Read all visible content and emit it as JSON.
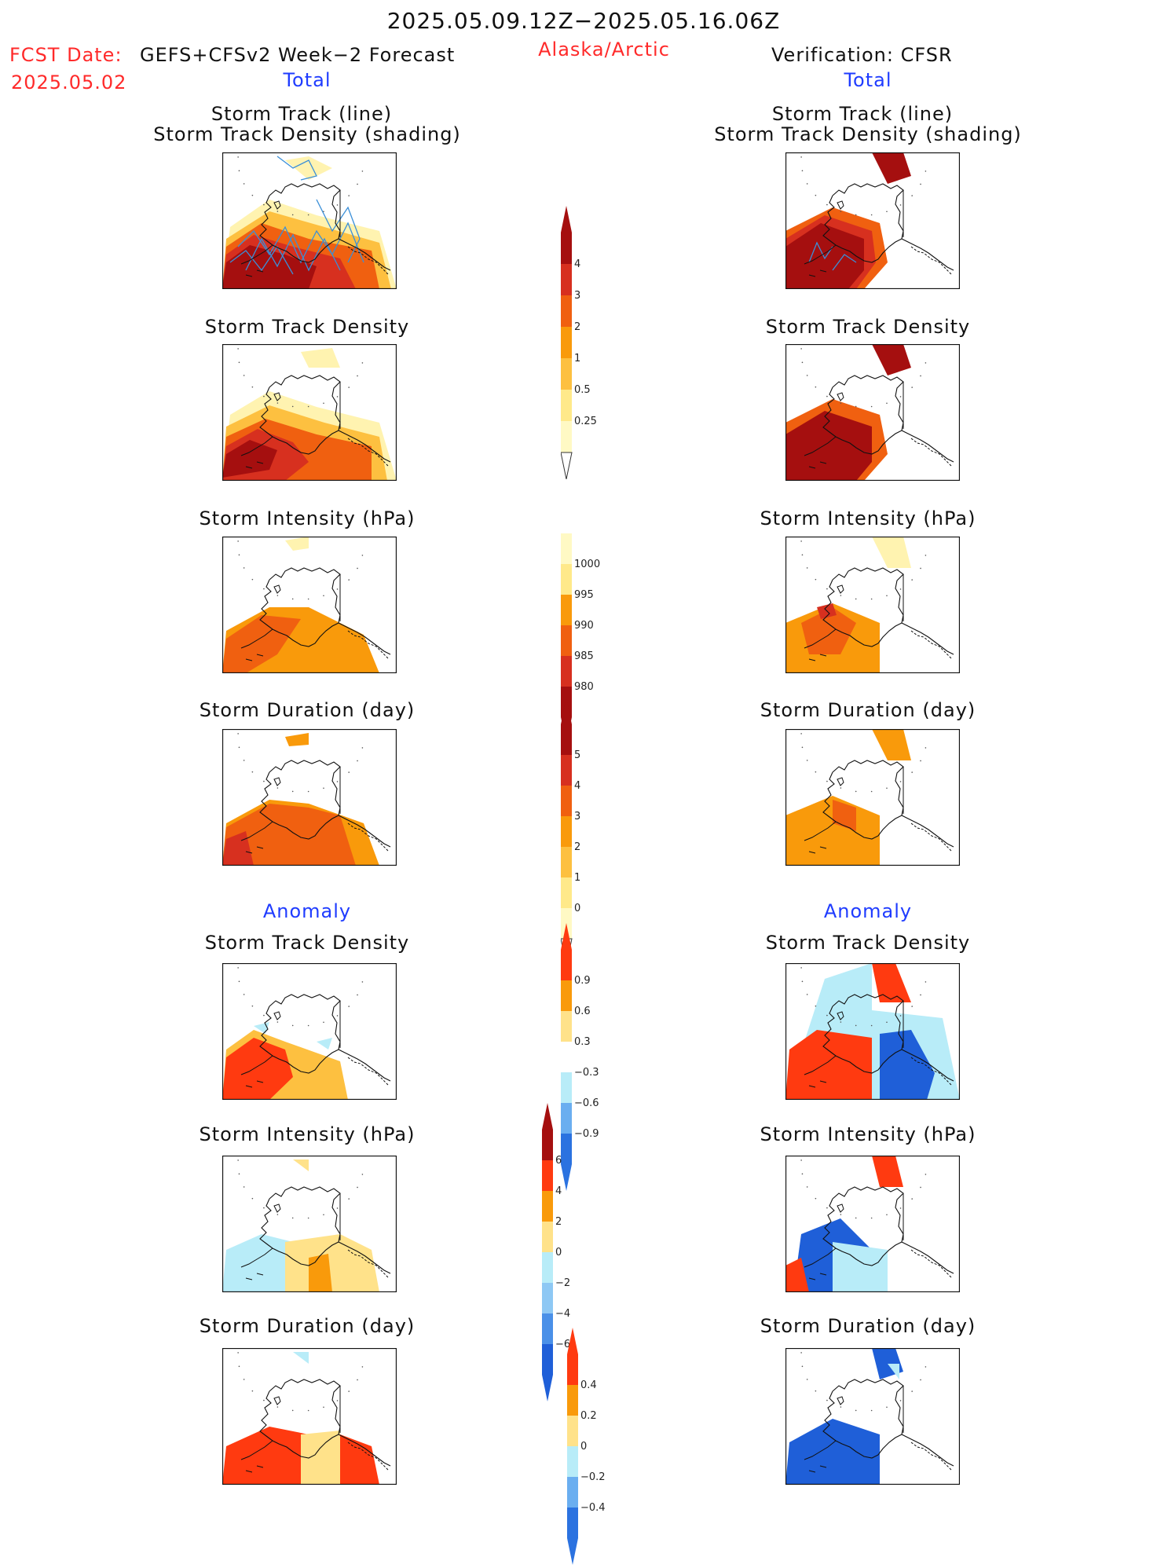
{
  "header": {
    "title": "2025.05.09.12Z−2025.05.16.06Z",
    "fcst_label": "FCST Date:",
    "fcst_source": "GEFS+CFSv2 Week−2 Forecast",
    "fcst_date": "2025.05.02",
    "region": "Alaska/Arctic",
    "verification": "Verification: CFSR",
    "left_section": "Total",
    "right_section": "Total"
  },
  "sections": {
    "anomaly_left": "Anomaly",
    "anomaly_right": "Anomaly"
  },
  "panel_titles": {
    "track_line": "Storm Track (line)",
    "track_shading": "Storm Track Density (shading)",
    "density": "Storm Track Density",
    "intensity": "Storm Intensity (hPa)",
    "duration": "Storm Duration (day)"
  },
  "colorbars": {
    "density_total": {
      "labels": [
        "4",
        "3",
        "2",
        "1",
        "0.5",
        "0.25"
      ],
      "colors": [
        "#a50f0f",
        "#d7301f",
        "#f06010",
        "#f99a0b",
        "#fdc040",
        "#ffe98a",
        "#fff9c4"
      ]
    },
    "intensity_total": {
      "labels": [
        "1000",
        "995",
        "990",
        "985",
        "980"
      ],
      "colors": [
        "#fff9c4",
        "#ffe98a",
        "#f99a0b",
        "#f06010",
        "#d7301f",
        "#a50f0f"
      ]
    },
    "duration_total": {
      "labels": [
        "5",
        "4",
        "3",
        "2",
        "1",
        "0"
      ],
      "colors": [
        "#a50f0f",
        "#d7301f",
        "#f06010",
        "#f99a0b",
        "#fdc040",
        "#ffe98a",
        "#fff9c4"
      ]
    },
    "density_anomaly": {
      "labels": [
        "0.9",
        "0.6",
        "0.3",
        "−0.3",
        "−0.6",
        "−0.9"
      ],
      "colors": [
        "#ff3a10",
        "#f99a0b",
        "#ffe28a",
        "#ffffff",
        "#b8ecf8",
        "#6aaef0",
        "#2b72e0"
      ]
    },
    "intensity_anomaly": {
      "labels": [
        "6",
        "4",
        "2",
        "0",
        "−2",
        "−4",
        "−6"
      ],
      "colors": [
        "#a50f0f",
        "#ff3a10",
        "#f99a0b",
        "#ffe28a",
        "#b8ecf8",
        "#8ec8f4",
        "#4a90e8",
        "#1f5fd8"
      ]
    },
    "duration_anomaly": {
      "labels": [
        "0.4",
        "0.2",
        "0",
        "−0.2",
        "−0.4"
      ],
      "colors": [
        "#ff3a10",
        "#f99a0b",
        "#ffe28a",
        "#b8ecf8",
        "#6aaef0",
        "#2b72e0"
      ]
    }
  }
}
